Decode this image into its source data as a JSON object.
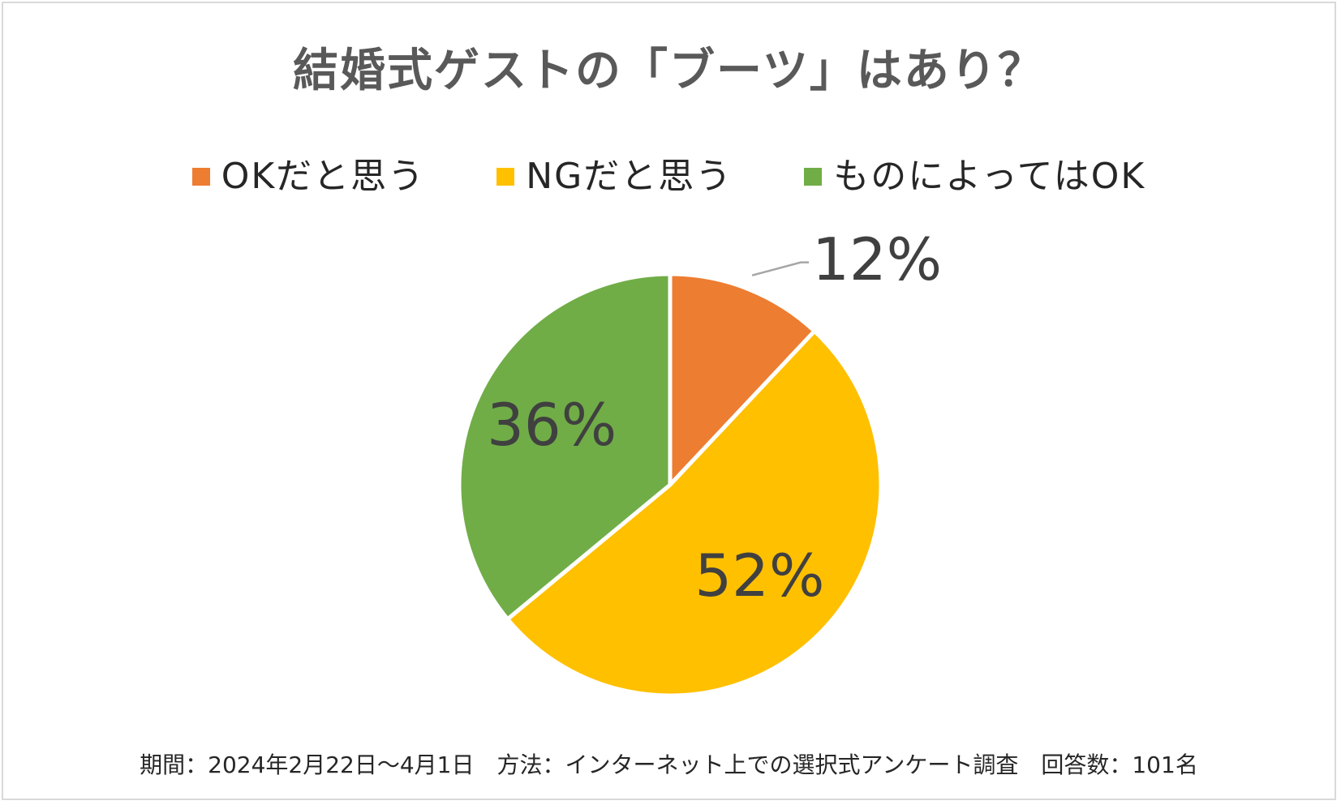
{
  "title": "結婚式ゲストの「ブーツ」はあり？",
  "footer": "期間：2024年2月22日～4月1日　方法：インターネット上での選択式アンケート調査　回答数：101名",
  "chart_data": {
    "type": "pie",
    "title": "結婚式ゲストの「ブーツ」はあり？",
    "legend_position": "top",
    "slices": [
      {
        "label": "OKだと思う",
        "value": 12,
        "display": "12%",
        "color": "#ED7D31"
      },
      {
        "label": "NGだと思う",
        "value": 52,
        "display": "52%",
        "color": "#FFC000"
      },
      {
        "label": "ものによってはOK",
        "value": 36,
        "display": "36%",
        "color": "#70AD47"
      }
    ]
  }
}
